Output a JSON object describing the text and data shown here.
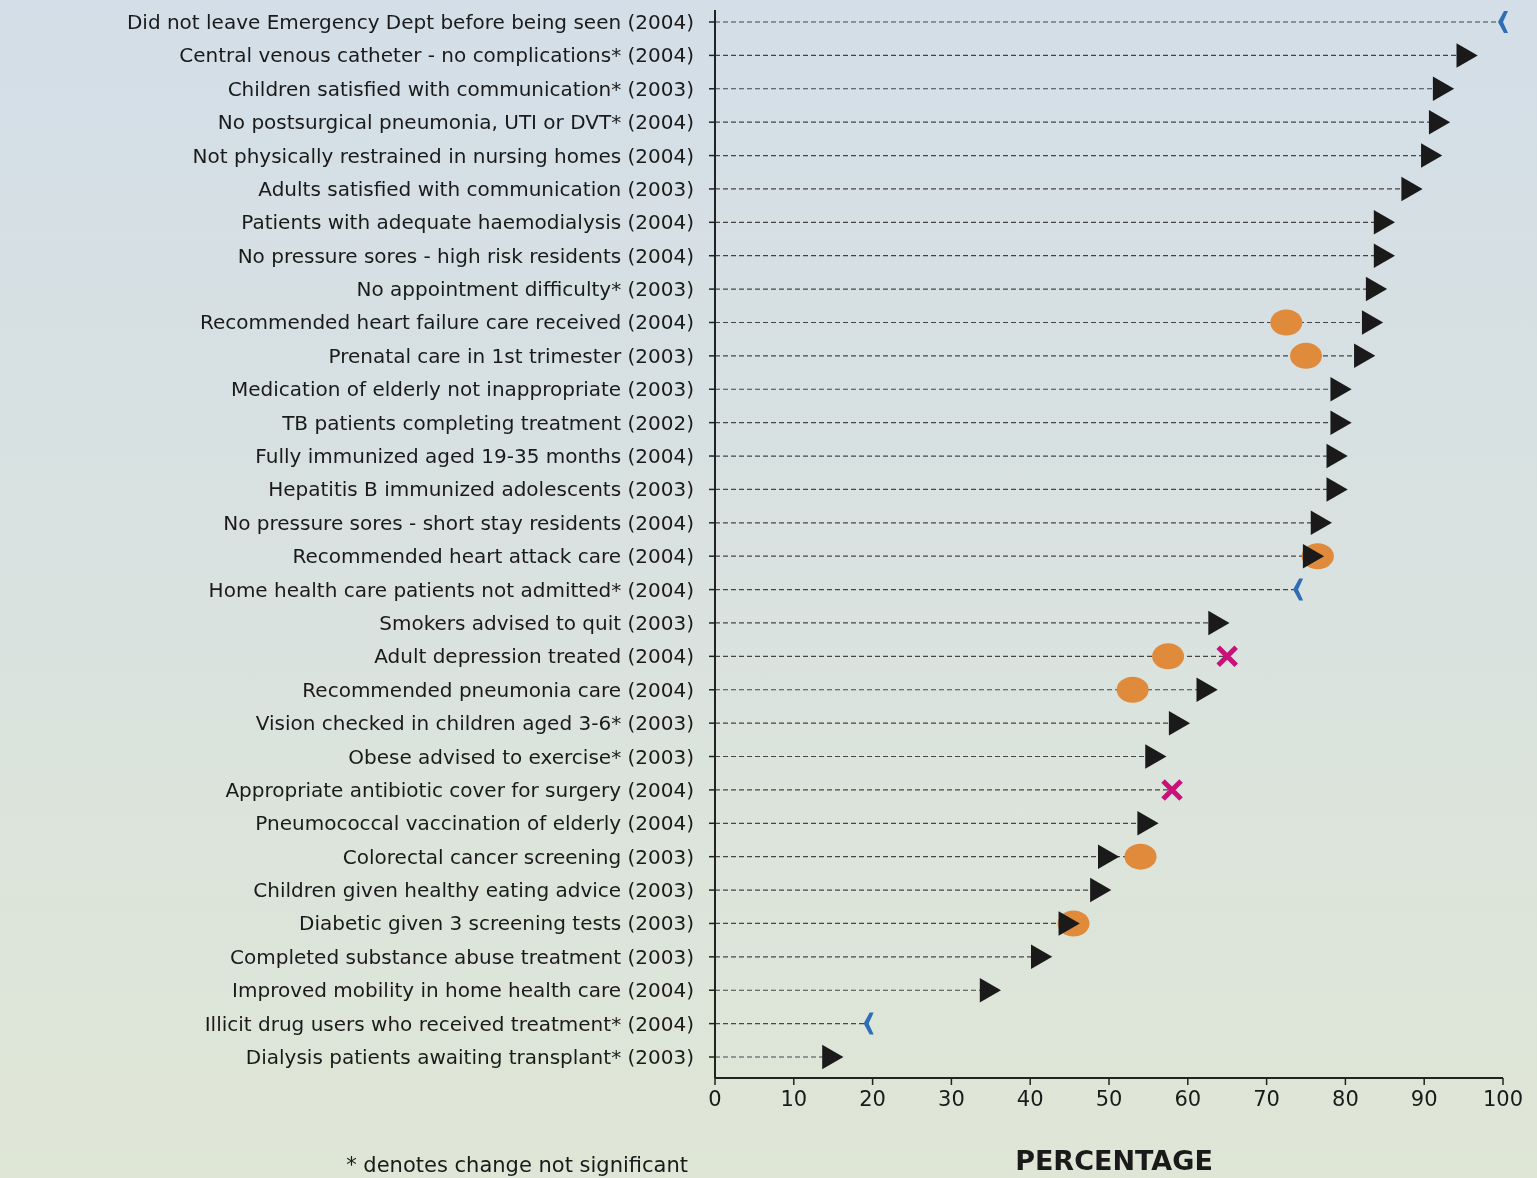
{
  "chart_data": {
    "type": "scatter",
    "orientation": "horizontal",
    "xlabel": "PERCENTAGE",
    "annotations": [
      "* denotes change not significant"
    ],
    "categories": [
      "Did not leave Emergency Dept before being seen (2004)",
      "Central venous catheter - no complications* (2004)",
      "Children satisfied with communication* (2003)",
      "No postsurgical pneumonia, UTI or DVT* (2004)",
      "Not physically restrained in nursing homes (2004)",
      "Adults satisfied with communication (2003)",
      "Patients with adequate haemodialysis (2004)",
      "No pressure sores - high risk residents (2004)",
      "No appointment difficulty* (2003)",
      "Recommended heart failure care received (2004)",
      "Prenatal care in 1st trimester (2003)",
      "Medication of elderly not inappropriate (2003)",
      "TB patients completing treatment (2002)",
      "Fully immunized aged 19-35 months (2004)",
      "Hepatitis B immunized adolescents (2003)",
      "No pressure sores - short stay residents (2004)",
      "Recommended heart attack care (2004)",
      "Home health care patients not admitted* (2004)",
      "Smokers advised to quit (2003)",
      "Adult depression treated (2004)",
      "Recommended pneumonia care (2004)",
      "Vision checked in children aged 3-6* (2003)",
      "Obese advised to exercise* (2003)",
      "Appropriate antibiotic cover for surgery (2004)",
      "Pneumococcal vaccination of elderly (2004)",
      "Colorectal cancer screening  (2003)",
      "Children given healthy eating advice (2003)",
      "Diabetic given 3 screening tests (2003)",
      "Completed substance abuse treatment (2003)",
      "Improved mobility in home health care (2004)",
      "Illicit drug users who received treatment* (2004)",
      "Dialysis patients awaiting transplant* (2003)"
    ],
    "series": [
      {
        "marker": "triangle",
        "color": "#1a1a1a",
        "values": [
          null,
          95,
          92,
          91.5,
          90.5,
          88,
          84.5,
          84.5,
          83.5,
          83,
          82,
          79,
          79,
          78.5,
          78.5,
          76.5,
          75.5,
          null,
          63.5,
          null,
          62,
          58.5,
          55.5,
          null,
          54.5,
          49.5,
          48.5,
          44.5,
          41,
          34.5,
          null,
          14.5
        ]
      },
      {
        "color": "#2f6db5",
        "values": [
          100,
          null,
          null,
          null,
          null,
          null,
          null,
          null,
          null,
          null,
          null,
          null,
          null,
          null,
          null,
          null,
          null,
          74,
          null,
          null,
          null,
          null,
          null,
          null,
          null,
          null,
          null,
          null,
          null,
          null,
          19.5,
          null
        ]
      },
      {
        "marker": "cross",
        "color": "#c8127a",
        "values": [
          null,
          null,
          null,
          null,
          null,
          null,
          null,
          null,
          null,
          null,
          null,
          null,
          null,
          null,
          null,
          null,
          null,
          null,
          null,
          65,
          null,
          null,
          null,
          58,
          null,
          null,
          null,
          null,
          null,
          null,
          null,
          null
        ]
      },
      {
        "marker": "circle",
        "color": "#e08a3c",
        "values": [
          null,
          null,
          null,
          null,
          null,
          null,
          null,
          null,
          null,
          72.5,
          75,
          null,
          null,
          null,
          null,
          null,
          76.5,
          null,
          null,
          57.5,
          53,
          null,
          null,
          null,
          null,
          54,
          null,
          45.5,
          null,
          null,
          null,
          null
        ]
      }
    ],
    "xlim": [
      0,
      100
    ],
    "xticks": [
      0,
      10,
      20,
      30,
      40,
      50,
      60,
      70,
      80,
      90,
      100
    ],
    "grid": true,
    "line_style": "dashed"
  }
}
